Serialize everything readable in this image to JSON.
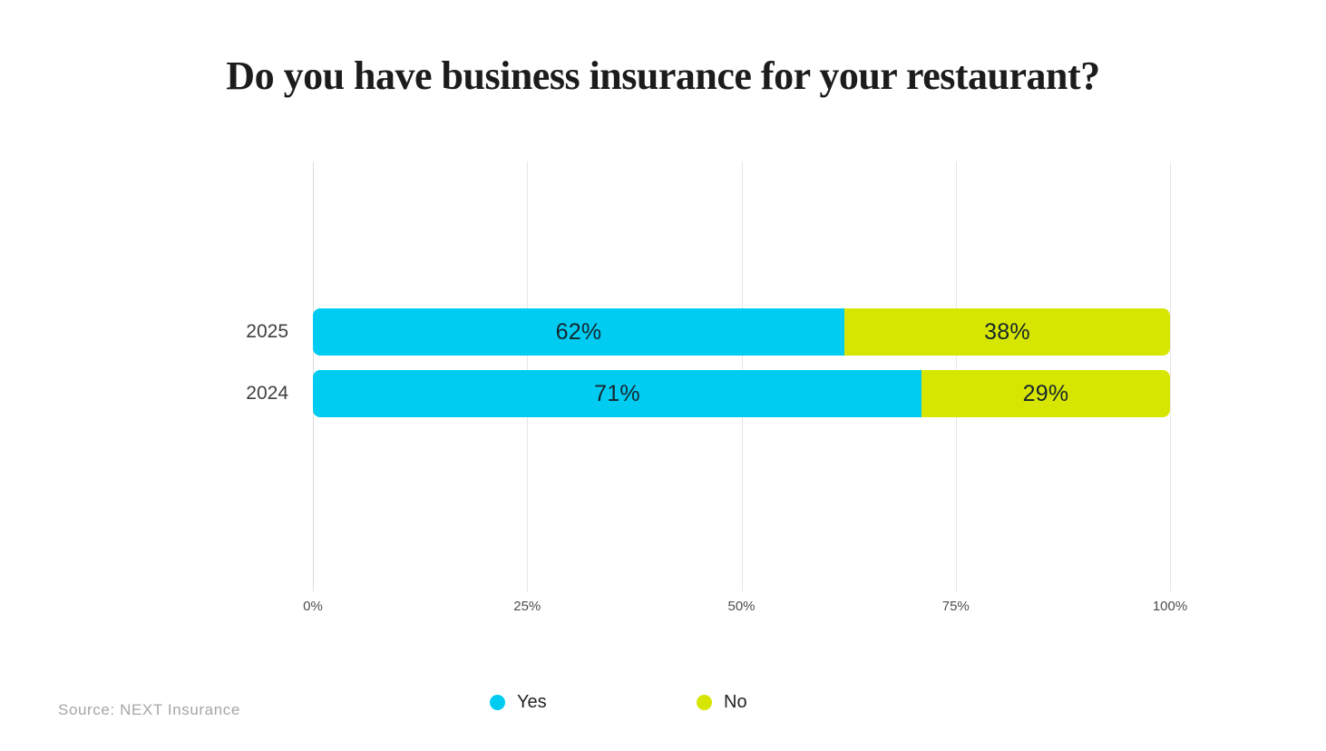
{
  "title": "Do you have business insurance for your restaurant?",
  "source": "Source: NEXT Insurance",
  "colors": {
    "yes": "#00ccf2",
    "no": "#d7e600"
  },
  "legend": {
    "yes_label": "Yes",
    "no_label": "No"
  },
  "chart_data": {
    "type": "bar",
    "orientation": "horizontal",
    "stacked": true,
    "title": "Do you have business insurance for your restaurant?",
    "categories": [
      "2025",
      "2024"
    ],
    "series": [
      {
        "name": "Yes",
        "color": "#00ccf2",
        "values": [
          62,
          71
        ],
        "labels": [
          "62%",
          "71%"
        ]
      },
      {
        "name": "No",
        "color": "#d7e600",
        "values": [
          38,
          29
        ],
        "labels": [
          "38%",
          "29%"
        ]
      }
    ],
    "x_ticks": [
      "0%",
      "25%",
      "50%",
      "75%",
      "100%"
    ],
    "xlim": [
      0,
      100
    ],
    "grid": "vertical",
    "legend_position": "bottom",
    "source": "Source: NEXT Insurance"
  }
}
